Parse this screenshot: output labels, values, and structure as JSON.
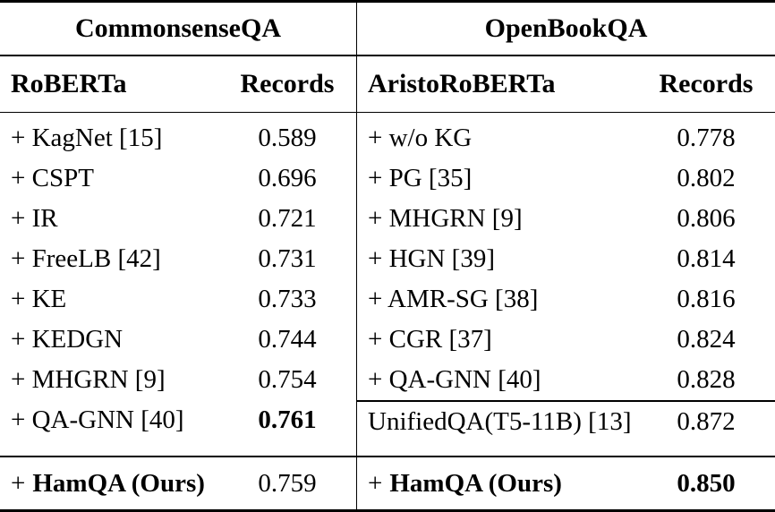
{
  "colors": {
    "text": "#000000",
    "background": "#ffffff",
    "rule": "#000000"
  },
  "left": {
    "group_title": "CommonsenseQA",
    "model_header": "RoBERTa",
    "records_header": "Records",
    "rows": [
      {
        "name": "+ KagNet [15]",
        "value": "0.589"
      },
      {
        "name": "+ CSPT",
        "value": "0.696"
      },
      {
        "name": "+ IR",
        "value": "0.721"
      },
      {
        "name": "+ FreeLB [42]",
        "value": "0.731"
      },
      {
        "name": "+ KE",
        "value": "0.733"
      },
      {
        "name": "+ KEDGN",
        "value": "0.744"
      },
      {
        "name": "+ MHGRN [9]",
        "value": "0.754"
      },
      {
        "name": "+ QA-GNN [40]",
        "value": "0.761"
      }
    ],
    "footer": {
      "prefix": "+",
      "name": "HamQA (Ours)",
      "value": "0.759"
    }
  },
  "right": {
    "group_title": "OpenBookQA",
    "model_header": "AristoRoBERTa",
    "records_header": "Records",
    "rows": [
      {
        "name": "+ w/o KG",
        "value": "0.778"
      },
      {
        "name": "+ PG [35]",
        "value": "0.802"
      },
      {
        "name": "+ MHGRN [9]",
        "value": "0.806"
      },
      {
        "name": "+ HGN [39]",
        "value": "0.814"
      },
      {
        "name": "+ AMR-SG [38]",
        "value": "0.816"
      },
      {
        "name": "+ CGR [37]",
        "value": "0.824"
      },
      {
        "name": "+ QA-GNN [40]",
        "value": "0.828"
      }
    ],
    "baseline_row": {
      "name": "UnifiedQA(T5-11B) [13]",
      "value": "0.872"
    },
    "footer": {
      "prefix": "+",
      "name": "HamQA (Ours)",
      "value": "0.850"
    }
  }
}
